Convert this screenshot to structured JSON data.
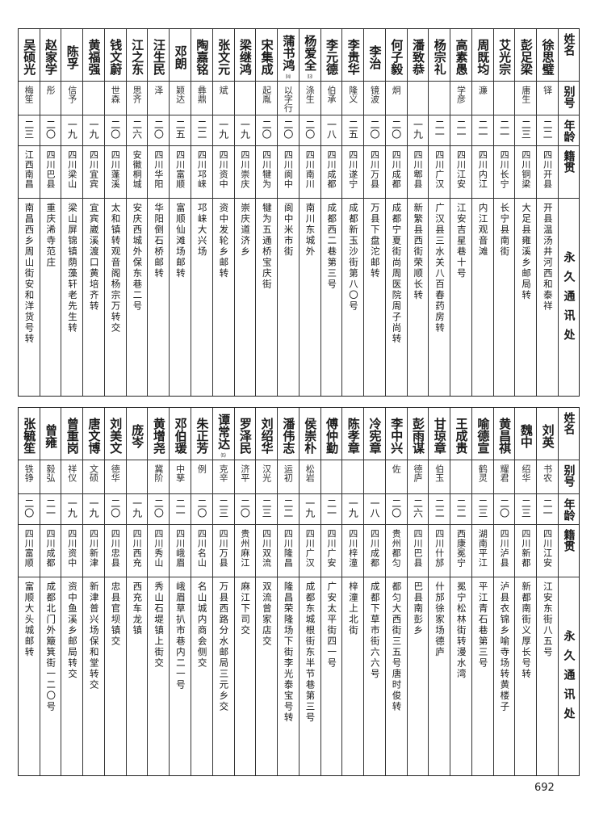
{
  "headers": {
    "name": "姓名",
    "alias": "别号",
    "age": "年龄",
    "origin": "籍贯",
    "address": "永久通讯处"
  },
  "tables": [
    {
      "rows": [
        {
          "name": "徐思璧",
          "alias": "铎",
          "age": "二二",
          "origin": "四川开县",
          "address": "开县温汤井河西和泰祥"
        },
        {
          "name": "彭足梁",
          "alias": "庸生",
          "age": "二三",
          "origin": "四川铜梁",
          "address": "大足县雍溪乡邮局转"
        },
        {
          "name": "艾光宗",
          "alias": "",
          "age": "二一",
          "origin": "四川长宁",
          "address": "长宁县南街"
        },
        {
          "name": "周既均",
          "alias": "濂",
          "age": "二一",
          "origin": "四川内江",
          "address": "内江观音滩"
        },
        {
          "name": "高素愚",
          "alias": "学彦",
          "age": "二一",
          "origin": "四川江安",
          "address": "江安吉星巷十号"
        },
        {
          "name": "杨宗礼",
          "alias": "",
          "age": "二一",
          "origin": "四川广汉",
          "address": "广汉县三水关八百春药房转"
        },
        {
          "name": "潘致恭",
          "alias": "",
          "age": "一九",
          "origin": "四川郫县",
          "address": "新繁县西街荣顺长转"
        },
        {
          "name": "何子毅",
          "alias": "炯",
          "age": "二〇",
          "origin": "四川成都",
          "address": "成都宁夏街尚周医院周子尚转"
        },
        {
          "name": "李治",
          "alias": "镜波",
          "age": "二〇",
          "origin": "四川万县",
          "address": "万县下盘沱邮转"
        },
        {
          "name": "李贵华",
          "alias": "隆义",
          "age": "二五",
          "origin": "四川遂宁",
          "address": "成都新玉沙街第八〇号"
        },
        {
          "name": "李元德",
          "alias": "伯承",
          "age": "一八",
          "origin": "四川成都",
          "address": "成都西二巷第三号"
        },
        {
          "name": "杨爱全",
          "note": "⒀",
          "alias": "涤生",
          "age": "二〇",
          "origin": "四川南川",
          "address": "南川东城外"
        },
        {
          "name": "蒲书鸿",
          "note": "⒁",
          "alias": "以字行",
          "age": "二〇",
          "origin": "四川阆中",
          "address": "阆中米市街"
        },
        {
          "name": "宋集成",
          "alias": "起胤",
          "age": "二〇",
          "origin": "四川犍为",
          "address": "犍为五通桥宝庆街"
        },
        {
          "name": "梁继鸿",
          "alias": "",
          "age": "一九",
          "origin": "四川崇庆",
          "address": "崇庆道济乡"
        },
        {
          "name": "张文元",
          "alias": "斌",
          "age": "一九",
          "origin": "四川资中",
          "address": "资中发轮乡邮转"
        },
        {
          "name": "陶嘉铭",
          "alias": "彝鼎",
          "age": "二二",
          "origin": "四川邛崃",
          "address": "邛崃大兴场"
        },
        {
          "name": "邓朗",
          "alias": "颖达",
          "age": "二五",
          "origin": "四川富顺",
          "address": "富顺仙滩场邮转"
        },
        {
          "name": "汪生民",
          "alias": "泽",
          "age": "二〇",
          "origin": "四川华阳",
          "address": "华阳倒石桥邮转"
        },
        {
          "name": "江之东",
          "alias": "思齐",
          "age": "二六",
          "origin": "安徽桐城",
          "address": "安庆西城外保东巷二号"
        },
        {
          "name": "钱文蔚",
          "alias": "世森",
          "age": "二〇",
          "origin": "四川蓬溪",
          "address": "太和镇转观音阁杨宗万转交"
        },
        {
          "name": "黄福强",
          "alias": "",
          "age": "一九",
          "origin": "四川宜宾",
          "address": "宜宾崴溪渡口黄培齐转"
        },
        {
          "name": "陈孚",
          "alias": "信予",
          "age": "一九",
          "origin": "四川梁山",
          "address": "梁山屏锦镇荫藻轩老先生转"
        },
        {
          "name": "赵家学",
          "alias": "彤",
          "age": "二〇",
          "origin": "四川巴县",
          "address": "重庆浠寺范庄"
        },
        {
          "name": "吴硕光",
          "alias": "梅笙",
          "age": "二三",
          "origin": "江西南昌",
          "address": "南昌西乡周山街安和洋货号转"
        }
      ]
    },
    {
      "rows": [
        {
          "name": "刘英",
          "alias": "书农",
          "age": "二一",
          "origin": "四川江安",
          "address": "江安东街八五号"
        },
        {
          "name": "魏中",
          "alias": "绍华",
          "age": "二三",
          "origin": "四川新都",
          "address": "新都南街义厚长号转"
        },
        {
          "name": "黄昌祺",
          "alias": "耀君",
          "age": "二〇",
          "origin": "四川泸县",
          "address": "泸县衣锦乡喻寺场转黄楼子"
        },
        {
          "name": "喻德宣",
          "alias": "鹤灵",
          "age": "二三",
          "origin": "湖南平江",
          "address": "平江青石巷第三号"
        },
        {
          "name": "王成贵",
          "alias": "",
          "age": "二二",
          "origin": "西康冕宁",
          "address": "冕宁松林街转漫水湾"
        },
        {
          "name": "甘琼章",
          "alias": "伯玉",
          "age": "二二",
          "origin": "四川什邡",
          "address": "什邡徐家场德庐"
        },
        {
          "name": "彭雨谋",
          "alias": "德庐",
          "age": "二六",
          "origin": "四川巴县",
          "address": "巴县南彭乡"
        },
        {
          "name": "李中兴",
          "alias": "佐",
          "age": "二〇",
          "origin": "贵州都匀",
          "address": "都匀大西街三五号唐时俊转"
        },
        {
          "name": "冷宪章",
          "alias": "",
          "age": "一八",
          "origin": "四川成都",
          "address": "成都下草市街六六号"
        },
        {
          "name": "陈孝章",
          "alias": "",
          "age": "一九",
          "origin": "四川梓潼",
          "address": "梓潼上北街"
        },
        {
          "name": "傅仲勤",
          "alias": "",
          "age": "二一",
          "origin": "四川广安",
          "address": "广安太平街四一号"
        },
        {
          "name": "侯崇朴",
          "alias": "松岩",
          "age": "一九",
          "origin": "四川广汉",
          "address": "成都东城根街东半节巷第三号"
        },
        {
          "name": "潘伟志",
          "alias": "运初",
          "age": "二二",
          "origin": "四川隆昌",
          "address": "隆昌荣隆场下街李光泰宝号转"
        },
        {
          "name": "刘绍华",
          "alias": "汉光",
          "age": "二三",
          "origin": "四川双流",
          "address": "双流曾家店交"
        },
        {
          "name": "罗泽民",
          "alias": "济平",
          "age": "二〇",
          "origin": "贵州麻江",
          "address": "麻江下司交"
        },
        {
          "name": "谭常达",
          "note": "⒂",
          "alias": "克辛",
          "age": "二三",
          "origin": "四川万县",
          "address": "万县西路分水邮局三元乡交"
        },
        {
          "name": "朱正芳",
          "alias": "例",
          "age": "二〇",
          "origin": "四川名山",
          "address": "名山城内商会侧交"
        },
        {
          "name": "邓伯瑗",
          "alias": "中孳",
          "age": "二一",
          "origin": "四川峨眉",
          "address": "峨眉草扒市巷内二一号"
        },
        {
          "name": "黄增尧",
          "alias": "冀阶",
          "age": "二〇",
          "origin": "四川秀山",
          "address": "秀山石堤镇上街交"
        },
        {
          "name": "庞岑",
          "alias": "",
          "age": "一九",
          "origin": "四川西充",
          "address": "西充车龙镇"
        },
        {
          "name": "刘美文",
          "alias": "德华",
          "age": "二〇",
          "origin": "四川忠县",
          "address": "忠县官坝镇交"
        },
        {
          "name": "唐文博",
          "alias": "文硕",
          "age": "一九",
          "origin": "四川新津",
          "address": "新津普兴场保和堂转交"
        },
        {
          "name": "曾重岗",
          "alias": "祥仪",
          "age": "一九",
          "origin": "四川资中",
          "address": "资中鱼溪乡邮局转交"
        },
        {
          "name": "曾雍",
          "alias": "毅弘",
          "age": "二一",
          "origin": "四川成都",
          "address": "成都北门外簸箕街一二〇号"
        },
        {
          "name": "张毓笙",
          "alias": "铁铮",
          "age": "二〇",
          "origin": "四川富顺",
          "address": "富顺大头城邮转"
        }
      ]
    }
  ],
  "page_number": "692"
}
